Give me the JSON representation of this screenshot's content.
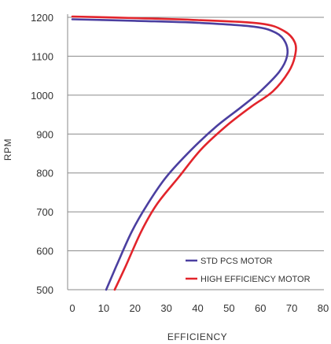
{
  "chart_data": {
    "type": "line",
    "xlabel": "EFFICIENCY",
    "ylabel": "RPM",
    "xlim": [
      0,
      80
    ],
    "ylim": [
      500,
      1200
    ],
    "x_ticks": [
      "0",
      "10",
      "20",
      "30",
      "40",
      "50",
      "60",
      "70",
      "80"
    ],
    "y_ticks": [
      "500",
      "600",
      "700",
      "800",
      "900",
      "1000",
      "1100",
      "1200"
    ],
    "grid": "horizontal",
    "legend_position": "bottom-right",
    "series": [
      {
        "name": "STD PCS MOTOR",
        "color": "#4b3fa0",
        "points": [
          [
            10.8,
            500
          ],
          [
            14,
            560
          ],
          [
            19,
            650
          ],
          [
            24,
            720
          ],
          [
            30,
            790
          ],
          [
            38,
            860
          ],
          [
            46,
            920
          ],
          [
            54,
            970
          ],
          [
            60,
            1010
          ],
          [
            66,
            1060
          ],
          [
            68.5,
            1100
          ],
          [
            68,
            1135
          ],
          [
            65,
            1160
          ],
          [
            58,
            1176
          ],
          [
            40,
            1186
          ],
          [
            20,
            1191
          ],
          [
            0,
            1195
          ]
        ]
      },
      {
        "name": "HIGH EFFICIENCY MOTOR",
        "color": "#e2242b",
        "points": [
          [
            13.5,
            500
          ],
          [
            17,
            560
          ],
          [
            22,
            650
          ],
          [
            27,
            720
          ],
          [
            34,
            790
          ],
          [
            41,
            860
          ],
          [
            49,
            920
          ],
          [
            57,
            970
          ],
          [
            64,
            1010
          ],
          [
            69,
            1060
          ],
          [
            71,
            1100
          ],
          [
            71,
            1135
          ],
          [
            67.5,
            1165
          ],
          [
            60,
            1184
          ],
          [
            40,
            1193
          ],
          [
            20,
            1198
          ],
          [
            0,
            1202
          ]
        ]
      }
    ]
  }
}
